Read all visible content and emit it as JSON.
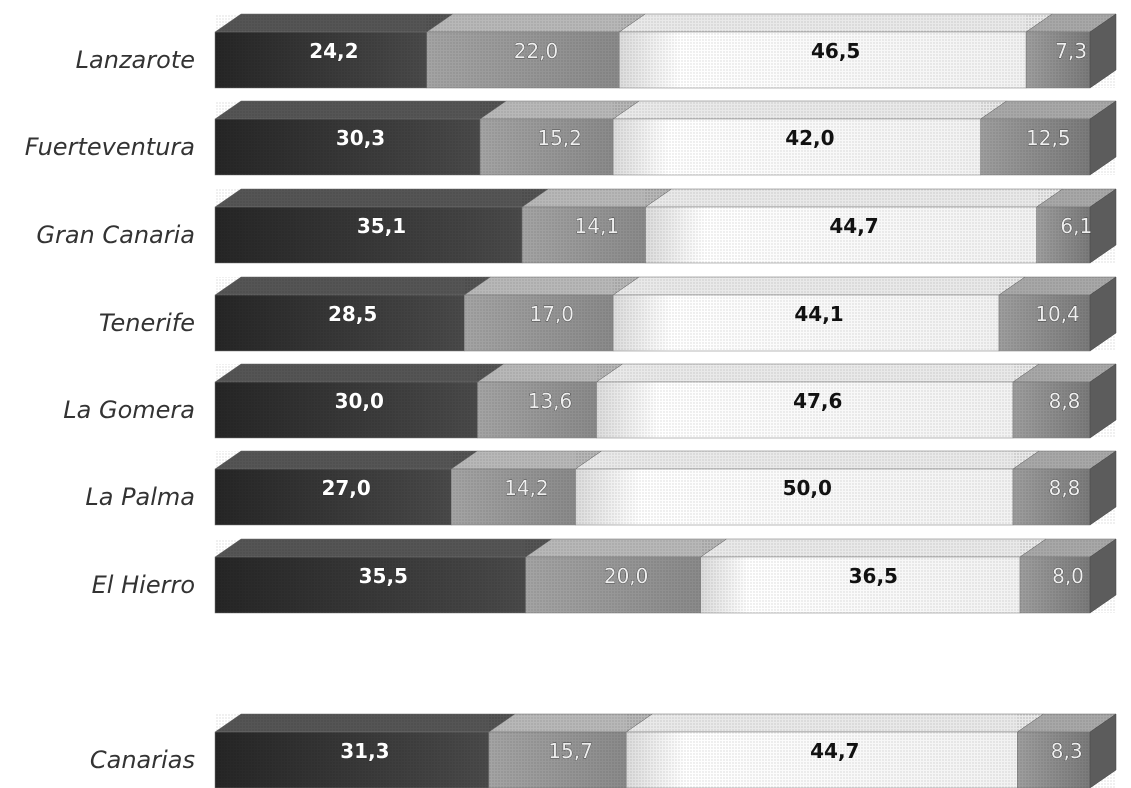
{
  "chart_data": {
    "type": "bar",
    "orientation": "horizontal",
    "stacked": true,
    "title": "",
    "xlabel": "",
    "ylabel": "",
    "xlim": [
      0,
      100
    ],
    "grid": false,
    "legend": "none",
    "categories": [
      "Lanzarote",
      "Fuerteventura",
      "Gran Canaria",
      "Tenerife",
      "La Gomera",
      "La Palma",
      "El Hierro",
      "Canarias"
    ],
    "series": [
      {
        "values": [
          24.2,
          30.3,
          35.1,
          28.5,
          30.0,
          27.0,
          35.5,
          31.3
        ],
        "labels": [
          "24,2",
          "30,3",
          "35,1",
          "28,5",
          "30,0",
          "27,0",
          "35,5",
          "31,3"
        ],
        "color": "#3a3a3a"
      },
      {
        "values": [
          22.0,
          15.2,
          14.1,
          17.0,
          13.6,
          14.2,
          20.0,
          15.7
        ],
        "labels": [
          "22,0",
          "15,2",
          "14,1",
          "17,0",
          "13,6",
          "14,2",
          "20,0",
          "15,7"
        ],
        "color": "#9a9a9a"
      },
      {
        "values": [
          46.5,
          42.0,
          44.7,
          44.1,
          47.6,
          50.0,
          36.5,
          44.7
        ],
        "labels": [
          "46,5",
          "42,0",
          "44,7",
          "44,1",
          "47,6",
          "50,0",
          "36,5",
          "44,7"
        ],
        "color": "#f7f7f7"
      },
      {
        "values": [
          7.3,
          12.5,
          6.1,
          10.4,
          8.8,
          8.8,
          8.0,
          8.3
        ],
        "labels": [
          "7,3",
          "12,5",
          "6,1",
          "10,4",
          "8,8",
          "8,8",
          "8,0",
          "8,3"
        ],
        "color": "#8a8a8a"
      }
    ]
  }
}
